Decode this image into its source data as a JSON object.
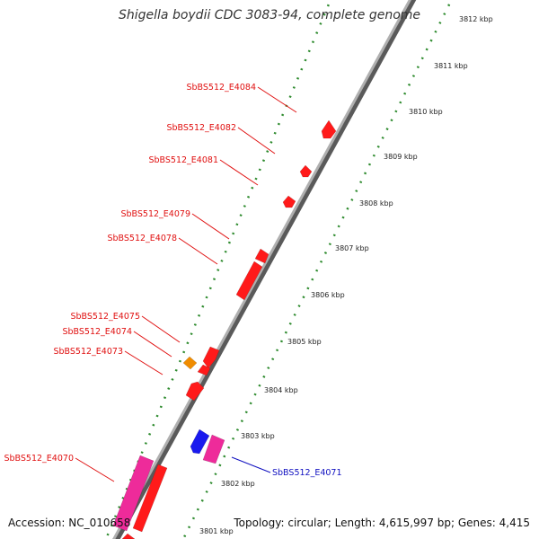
{
  "title": "Shigella boydii CDC 3083-94, complete genome",
  "accession": "Accession: NC_010658",
  "summary": "Topology: circular; Length: 4,615,997 bp; Genes: 4,415",
  "colors": {
    "backbone": "#8a8a8a",
    "tick_dots": "#2e8b2e",
    "gene_red": "#ff1a1a",
    "gene_magenta": "#ee2b9a",
    "gene_blue": "#1a1aee",
    "gene_orange": "#f08c00",
    "label_red": "#e01010",
    "label_blue": "#1010c0"
  },
  "ticks": [
    "3812 kbp",
    "3811 kbp",
    "3810 kbp",
    "3809 kbp",
    "3808 kbp",
    "3807 kbp",
    "3806 kbp",
    "3805 kbp",
    "3804 kbp",
    "3803 kbp",
    "3802 kbp",
    "3801 kbp"
  ],
  "labels": [
    {
      "text": "SbBS512_E4084",
      "color": "red"
    },
    {
      "text": "SbBS512_E4082",
      "color": "red"
    },
    {
      "text": "SbBS512_E4081",
      "color": "red"
    },
    {
      "text": "SbBS512_E4079",
      "color": "red"
    },
    {
      "text": "SbBS512_E4078",
      "color": "red"
    },
    {
      "text": "SbBS512_E4075",
      "color": "red"
    },
    {
      "text": "SbBS512_E4074",
      "color": "red"
    },
    {
      "text": "SbBS512_E4073",
      "color": "red"
    },
    {
      "text": "SbBS512_E4070",
      "color": "red"
    },
    {
      "text": "SbBS512_E4071",
      "color": "blue"
    }
  ]
}
